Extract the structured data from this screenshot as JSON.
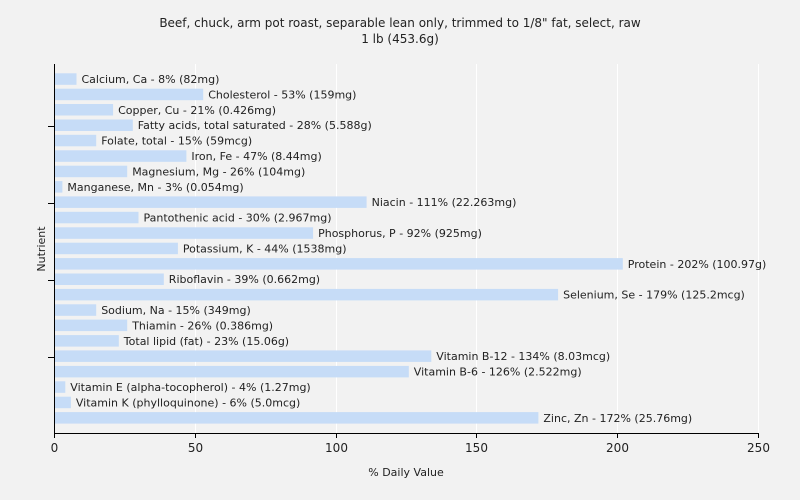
{
  "chart_data": {
    "type": "bar",
    "orientation": "horizontal",
    "title": "Beef, chuck, arm pot roast, separable lean only, trimmed to 1/8\" fat, select, raw",
    "subtitle": "1 lb (453.6g)",
    "xlabel": "% Daily Value",
    "ylabel": "Nutrient",
    "xlim": [
      0,
      250
    ],
    "xticks": [
      0,
      50,
      100,
      150,
      200,
      250
    ],
    "grid": true,
    "bar_color": "#c6dcf7",
    "bars": [
      {
        "category": "Calcium, Ca",
        "value": 8,
        "label": "Calcium, Ca - 8% (82mg)"
      },
      {
        "category": "Cholesterol",
        "value": 53,
        "label": "Cholesterol - 53% (159mg)"
      },
      {
        "category": "Copper, Cu",
        "value": 21,
        "label": "Copper, Cu - 21% (0.426mg)"
      },
      {
        "category": "Fatty acids, total saturated",
        "value": 28,
        "label": "Fatty acids, total saturated - 28% (5.588g)"
      },
      {
        "category": "Folate, total",
        "value": 15,
        "label": "Folate, total - 15% (59mcg)"
      },
      {
        "category": "Iron, Fe",
        "value": 47,
        "label": "Iron, Fe - 47% (8.44mg)"
      },
      {
        "category": "Magnesium, Mg",
        "value": 26,
        "label": "Magnesium, Mg - 26% (104mg)"
      },
      {
        "category": "Manganese, Mn",
        "value": 3,
        "label": "Manganese, Mn - 3% (0.054mg)"
      },
      {
        "category": "Niacin",
        "value": 111,
        "label": "Niacin - 111% (22.263mg)"
      },
      {
        "category": "Pantothenic acid",
        "value": 30,
        "label": "Pantothenic acid - 30% (2.967mg)"
      },
      {
        "category": "Phosphorus, P",
        "value": 92,
        "label": "Phosphorus, P - 92% (925mg)"
      },
      {
        "category": "Potassium, K",
        "value": 44,
        "label": "Potassium, K - 44% (1538mg)"
      },
      {
        "category": "Protein",
        "value": 202,
        "label": "Protein - 202% (100.97g)"
      },
      {
        "category": "Riboflavin",
        "value": 39,
        "label": "Riboflavin - 39% (0.662mg)"
      },
      {
        "category": "Selenium, Se",
        "value": 179,
        "label": "Selenium, Se - 179% (125.2mcg)"
      },
      {
        "category": "Sodium, Na",
        "value": 15,
        "label": "Sodium, Na - 15% (349mg)"
      },
      {
        "category": "Thiamin",
        "value": 26,
        "label": "Thiamin - 26% (0.386mg)"
      },
      {
        "category": "Total lipid (fat)",
        "value": 23,
        "label": "Total lipid (fat) - 23% (15.06g)"
      },
      {
        "category": "Vitamin B-12",
        "value": 134,
        "label": "Vitamin B-12 - 134% (8.03mcg)"
      },
      {
        "category": "Vitamin B-6",
        "value": 126,
        "label": "Vitamin B-6 - 126% (2.522mg)"
      },
      {
        "category": "Vitamin E (alpha-tocopherol)",
        "value": 4,
        "label": "Vitamin E (alpha-tocopherol) - 4% (1.27mg)"
      },
      {
        "category": "Vitamin K (phylloquinone)",
        "value": 6,
        "label": "Vitamin K (phylloquinone) - 6% (5.0mcg)"
      },
      {
        "category": "Zinc, Zn",
        "value": 172,
        "label": "Zinc, Zn - 172% (25.76mg)"
      }
    ]
  }
}
